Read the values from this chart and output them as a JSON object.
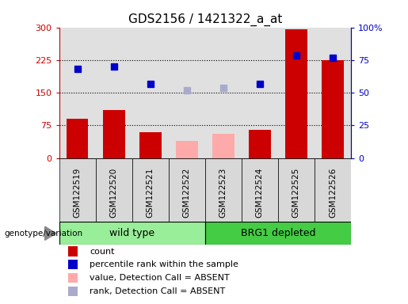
{
  "title": "GDS2156 / 1421322_a_at",
  "samples": [
    "GSM122519",
    "GSM122520",
    "GSM122521",
    "GSM122522",
    "GSM122523",
    "GSM122524",
    "GSM122525",
    "GSM122526"
  ],
  "groups": {
    "wild type": [
      0,
      1,
      2,
      3
    ],
    "BRG1 depleted": [
      4,
      5,
      6,
      7
    ]
  },
  "count_values": [
    90,
    110,
    60,
    null,
    null,
    65,
    295,
    225
  ],
  "count_absent": [
    null,
    null,
    null,
    40,
    55,
    null,
    null,
    null
  ],
  "percentile_present": [
    205,
    210,
    170,
    null,
    null,
    170,
    235,
    230
  ],
  "percentile_absent": [
    null,
    null,
    null,
    155,
    162,
    null,
    null,
    null
  ],
  "ylim_left": [
    0,
    300
  ],
  "ylim_right": [
    0,
    100
  ],
  "yticks_left": [
    0,
    75,
    150,
    225,
    300
  ],
  "ytick_labels_left": [
    "0",
    "75",
    "150",
    "225",
    "300"
  ],
  "yticks_right": [
    0,
    25,
    50,
    75,
    100
  ],
  "ytick_labels_right": [
    "0",
    "25",
    "50",
    "75",
    "100%"
  ],
  "hlines": [
    75,
    150,
    225
  ],
  "bar_color_present": "#cc0000",
  "bar_color_absent": "#ffaaaa",
  "dot_color_present": "#0000cc",
  "dot_color_absent": "#aaaacc",
  "group_color_wt": "#99ee99",
  "group_color_brg": "#44cc44",
  "legend_items": [
    {
      "label": "count",
      "color": "#cc0000"
    },
    {
      "label": "percentile rank within the sample",
      "color": "#0000cc"
    },
    {
      "label": "value, Detection Call = ABSENT",
      "color": "#ffaaaa"
    },
    {
      "label": "rank, Detection Call = ABSENT",
      "color": "#aaaacc"
    }
  ],
  "genotype_label": "genotype/variation",
  "plot_bg": "#e0e0e0",
  "title_fontsize": 11,
  "axis_left_color": "#cc0000",
  "axis_right_color": "#0000cc"
}
